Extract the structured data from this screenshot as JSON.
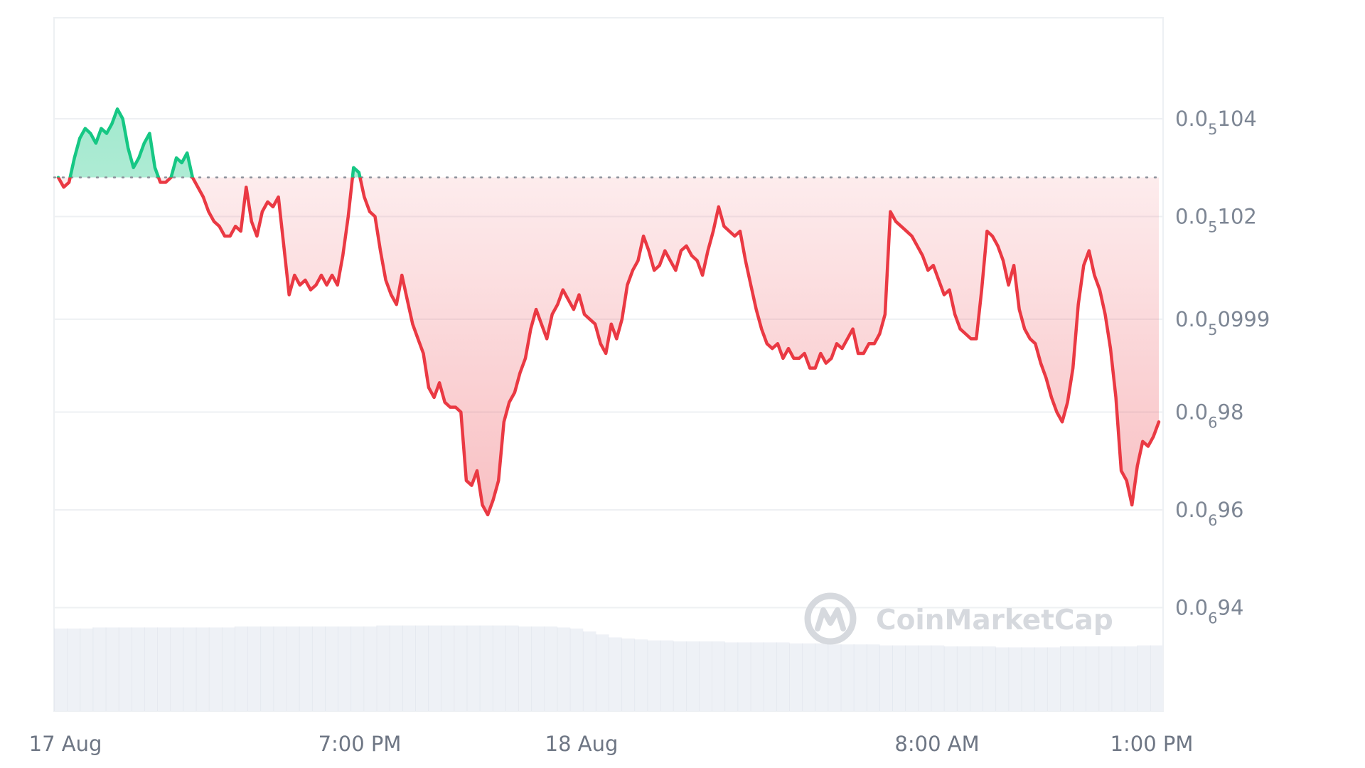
{
  "chart_data": {
    "type": "area",
    "x_labels": [
      "17 Aug",
      "7:00 PM",
      "18 Aug",
      "8:00 AM",
      "1:00 PM"
    ],
    "y_ticks": [
      {
        "value": 1.04e-06,
        "prefix": "0.0",
        "sub": "5",
        "digits": "104"
      },
      {
        "value": 1.02e-06,
        "prefix": "0.0",
        "sub": "5",
        "digits": "102"
      },
      {
        "value": 9.99e-07,
        "prefix": "0.0",
        "sub": "5",
        "digits": "0999"
      },
      {
        "value": 9.8e-07,
        "prefix": "0.0",
        "sub": "6",
        "digits": "98"
      },
      {
        "value": 9.6e-07,
        "prefix": "0.0",
        "sub": "6",
        "digits": "96"
      },
      {
        "value": 9.4e-07,
        "prefix": "0.0",
        "sub": "6",
        "digits": "94"
      }
    ],
    "reference_price": 1.028e-06,
    "series": [
      {
        "color_up": "#16c784",
        "color_down": "#ea3943",
        "values": [
          1.028e-06,
          1.026e-06,
          1.027e-06,
          1.032e-06,
          1.036e-06,
          1.038e-06,
          1.037e-06,
          1.035e-06,
          1.038e-06,
          1.037e-06,
          1.039e-06,
          1.042e-06,
          1.04e-06,
          1.034e-06,
          1.03e-06,
          1.032e-06,
          1.035e-06,
          1.037e-06,
          1.03e-06,
          1.027e-06,
          1.027e-06,
          1.028e-06,
          1.032e-06,
          1.031e-06,
          1.033e-06,
          1.028e-06,
          1.026e-06,
          1.024e-06,
          1.021e-06,
          1.019e-06,
          1.018e-06,
          1.016e-06,
          1.016e-06,
          1.018e-06,
          1.017e-06,
          1.026e-06,
          1.019e-06,
          1.016e-06,
          1.021e-06,
          1.023e-06,
          1.022e-06,
          1.024e-06,
          1.014e-06,
          1.004e-06,
          1.008e-06,
          1.006e-06,
          1.007e-06,
          1.005e-06,
          1.006e-06,
          1.008e-06,
          1.006e-06,
          1.008e-06,
          1.006e-06,
          1.012e-06,
          1.02e-06,
          1.03e-06,
          1.029e-06,
          1.024e-06,
          1.021e-06,
          1.02e-06,
          1.013e-06,
          1.007e-06,
          1.004e-06,
          1.002e-06,
          1.008e-06,
          1.003e-06,
          9.98e-07,
          9.95e-07,
          9.92e-07,
          9.85e-07,
          9.83e-07,
          9.86e-07,
          9.82e-07,
          9.81e-07,
          9.81e-07,
          9.8e-07,
          9.66e-07,
          9.65e-07,
          9.68e-07,
          9.61e-07,
          9.59e-07,
          9.62e-07,
          9.66e-07,
          9.78e-07,
          9.82e-07,
          9.84e-07,
          9.88e-07,
          9.91e-07,
          9.97e-07,
          1.001e-06,
          9.98e-07,
          9.95e-07,
          1e-06,
          1.002e-06,
          1.005e-06,
          1.003e-06,
          1.001e-06,
          1.004e-06,
          1e-06,
          9.99e-07,
          9.98e-07,
          9.94e-07,
          9.92e-07,
          9.98e-07,
          9.95e-07,
          9.99e-07,
          1.006e-06,
          1.009e-06,
          1.011e-06,
          1.016e-06,
          1.013e-06,
          1.009e-06,
          1.01e-06,
          1.013e-06,
          1.011e-06,
          1.009e-06,
          1.013e-06,
          1.014e-06,
          1.012e-06,
          1.011e-06,
          1.008e-06,
          1.013e-06,
          1.017e-06,
          1.022e-06,
          1.018e-06,
          1.017e-06,
          1.016e-06,
          1.017e-06,
          1.011e-06,
          1.006e-06,
          1.001e-06,
          9.97e-07,
          9.94e-07,
          9.93e-07,
          9.94e-07,
          9.91e-07,
          9.93e-07,
          9.91e-07,
          9.91e-07,
          9.92e-07,
          9.89e-07,
          9.89e-07,
          9.92e-07,
          9.9e-07,
          9.91e-07,
          9.94e-07,
          9.93e-07,
          9.95e-07,
          9.97e-07,
          9.92e-07,
          9.92e-07,
          9.94e-07,
          9.94e-07,
          9.96e-07,
          1e-06,
          1.021e-06,
          1.019e-06,
          1.018e-06,
          1.017e-06,
          1.016e-06,
          1.014e-06,
          1.012e-06,
          1.009e-06,
          1.01e-06,
          1.007e-06,
          1.004e-06,
          1.005e-06,
          1e-06,
          9.97e-07,
          9.96e-07,
          9.95e-07,
          9.95e-07,
          1.005e-06,
          1.017e-06,
          1.016e-06,
          1.014e-06,
          1.011e-06,
          1.006e-06,
          1.01e-06,
          1.001e-06,
          9.97e-07,
          9.95e-07,
          9.94e-07,
          9.9e-07,
          9.87e-07,
          9.83e-07,
          9.8e-07,
          9.78e-07,
          9.82e-07,
          9.89e-07,
          1.002e-06,
          1.01e-06,
          1.013e-06,
          1.008e-06,
          1.005e-06,
          1e-06,
          9.93e-07,
          9.83e-07,
          9.68e-07,
          9.66e-07,
          9.61e-07,
          9.69e-07,
          9.74e-07,
          9.73e-07,
          9.75e-07,
          9.78e-07
        ]
      }
    ],
    "volume": [
      0.83,
      0.83,
      0.83,
      0.84,
      0.84,
      0.84,
      0.84,
      0.84,
      0.84,
      0.84,
      0.84,
      0.84,
      0.84,
      0.84,
      0.85,
      0.85,
      0.85,
      0.85,
      0.85,
      0.85,
      0.85,
      0.85,
      0.85,
      0.85,
      0.85,
      0.86,
      0.86,
      0.86,
      0.86,
      0.86,
      0.86,
      0.86,
      0.86,
      0.86,
      0.86,
      0.86,
      0.85,
      0.85,
      0.85,
      0.84,
      0.83,
      0.8,
      0.77,
      0.74,
      0.73,
      0.72,
      0.71,
      0.71,
      0.7,
      0.7,
      0.7,
      0.7,
      0.69,
      0.69,
      0.69,
      0.69,
      0.69,
      0.68,
      0.68,
      0.68,
      0.67,
      0.67,
      0.67,
      0.67,
      0.66,
      0.66,
      0.66,
      0.66,
      0.66,
      0.65,
      0.65,
      0.65,
      0.65,
      0.64,
      0.64,
      0.64,
      0.64,
      0.64,
      0.65,
      0.65,
      0.65,
      0.65,
      0.65,
      0.65,
      0.66,
      0.66
    ]
  },
  "watermark": {
    "text": "CoinMarketCap"
  }
}
